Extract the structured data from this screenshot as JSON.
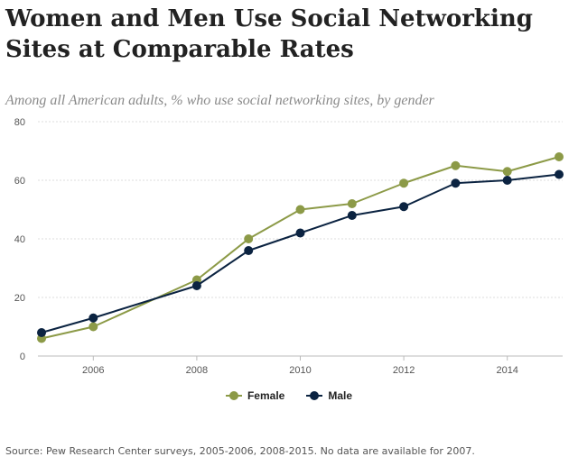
{
  "header": {
    "title": "Women and Men Use Social Networking Sites at Comparable Rates",
    "subtitle": "Among all American adults, % who use social networking sites, by gender"
  },
  "footer": {
    "source": "Source: Pew Research Center surveys, 2005-2006, 2008-2015. No data are available for 2007."
  },
  "colors": {
    "female": "#8c9a47",
    "male": "#0b2341",
    "grid": "#dddddd",
    "axis_text": "#555555"
  },
  "chart_data": {
    "type": "line",
    "title": "Women and Men Use Social Networking Sites at Comparable Rates",
    "subtitle": "Among all American adults, % who use social networking sites, by gender",
    "xlabel": "",
    "ylabel": "",
    "xlim": [
      2005,
      2015
    ],
    "ylim": [
      0,
      80
    ],
    "yticks": [
      0,
      20,
      40,
      60,
      80
    ],
    "xticks": [
      2006,
      2008,
      2010,
      2012,
      2014
    ],
    "grid": true,
    "legend": "bottom-center",
    "series": [
      {
        "name": "Female",
        "x": [
          2005,
          2006,
          2008,
          2009,
          2010,
          2011,
          2012,
          2013,
          2014,
          2015
        ],
        "values": [
          6,
          10,
          26,
          40,
          50,
          52,
          59,
          65,
          63,
          68
        ]
      },
      {
        "name": "Male",
        "x": [
          2005,
          2006,
          2008,
          2009,
          2010,
          2011,
          2012,
          2013,
          2014,
          2015
        ],
        "values": [
          8,
          13,
          24,
          36,
          42,
          48,
          51,
          59,
          60,
          62
        ]
      }
    ]
  }
}
